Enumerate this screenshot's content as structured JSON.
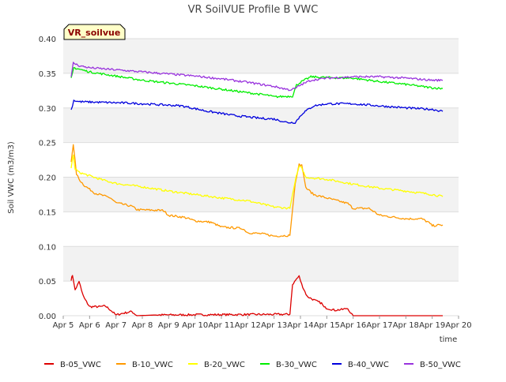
{
  "chart_data": {
    "type": "line",
    "title": "VR SoilVUE Profile B VWC",
    "xlabel": "time",
    "ylabel": "Soil VWC (m3/m3)",
    "ylim": [
      0,
      0.4
    ],
    "xlim": [
      5,
      20
    ],
    "y_ticks": [
      "0.00",
      "0.05",
      "0.10",
      "0.15",
      "0.20",
      "0.25",
      "0.30",
      "0.35",
      "0.40"
    ],
    "x_ticks": [
      {
        "value": 5,
        "label": "Apr 5"
      },
      {
        "value": 6,
        "label": "Apr 6"
      },
      {
        "value": 7,
        "label": "Apr 7"
      },
      {
        "value": 8,
        "label": "Apr 8"
      },
      {
        "value": 9,
        "label": "Apr 9"
      },
      {
        "value": 10,
        "label": "Apr 10"
      },
      {
        "value": 11,
        "label": "Apr 11"
      },
      {
        "value": 12,
        "label": "Apr 12"
      },
      {
        "value": 13,
        "label": "Apr 13"
      },
      {
        "value": 14,
        "label": "Apr 14"
      },
      {
        "value": 15,
        "label": "Apr 15"
      },
      {
        "value": 16,
        "label": "Apr 16"
      },
      {
        "value": 17,
        "label": "Apr 17"
      },
      {
        "value": 18,
        "label": "Apr 18"
      },
      {
        "value": 19,
        "label": "Apr 19"
      },
      {
        "value": 20,
        "label": "Apr 20"
      }
    ],
    "x_unit": "day of April",
    "grid": "horizontal bands",
    "legend_position": "bottom",
    "site_badge": "VR_soilvue",
    "series": [
      {
        "name": "B-05_VWC",
        "color": "#dd0000",
        "points": [
          [
            5.3,
            0.052
          ],
          [
            5.35,
            0.058
          ],
          [
            5.45,
            0.038
          ],
          [
            5.55,
            0.045
          ],
          [
            5.6,
            0.05
          ],
          [
            5.7,
            0.035
          ],
          [
            5.8,
            0.025
          ],
          [
            6.0,
            0.013
          ],
          [
            6.4,
            0.013
          ],
          [
            6.6,
            0.014
          ],
          [
            6.8,
            0.008
          ],
          [
            7.0,
            0.001
          ],
          [
            7.2,
            0.003
          ],
          [
            7.6,
            0.006
          ],
          [
            7.8,
            0.0
          ],
          [
            8.5,
            0.001
          ],
          [
            13.6,
            0.002
          ],
          [
            13.7,
            0.045
          ],
          [
            13.85,
            0.053
          ],
          [
            13.95,
            0.057
          ],
          [
            14.05,
            0.045
          ],
          [
            14.25,
            0.028
          ],
          [
            14.55,
            0.022
          ],
          [
            14.8,
            0.018
          ],
          [
            14.9,
            0.012
          ],
          [
            15.3,
            0.008
          ],
          [
            15.6,
            0.009
          ],
          [
            15.8,
            0.011
          ],
          [
            15.9,
            0.003
          ],
          [
            16.0,
            0.0
          ],
          [
            19.4,
            0.0
          ]
        ]
      },
      {
        "name": "B-10_VWC",
        "color": "#ff9900",
        "points": [
          [
            5.3,
            0.222
          ],
          [
            5.38,
            0.247
          ],
          [
            5.45,
            0.225
          ],
          [
            5.5,
            0.205
          ],
          [
            5.6,
            0.197
          ],
          [
            5.8,
            0.188
          ],
          [
            6.2,
            0.177
          ],
          [
            6.8,
            0.17
          ],
          [
            7.0,
            0.163
          ],
          [
            7.6,
            0.158
          ],
          [
            7.8,
            0.153
          ],
          [
            8.8,
            0.152
          ],
          [
            9.0,
            0.145
          ],
          [
            9.6,
            0.142
          ],
          [
            10.0,
            0.137
          ],
          [
            10.6,
            0.135
          ],
          [
            11.0,
            0.128
          ],
          [
            11.8,
            0.126
          ],
          [
            12.0,
            0.12
          ],
          [
            12.6,
            0.118
          ],
          [
            13.0,
            0.115
          ],
          [
            13.6,
            0.116
          ],
          [
            13.8,
            0.19
          ],
          [
            13.95,
            0.218
          ],
          [
            14.05,
            0.218
          ],
          [
            14.2,
            0.185
          ],
          [
            14.5,
            0.175
          ],
          [
            15.0,
            0.17
          ],
          [
            15.8,
            0.162
          ],
          [
            16.0,
            0.155
          ],
          [
            16.6,
            0.155
          ],
          [
            17.0,
            0.145
          ],
          [
            18.0,
            0.14
          ],
          [
            18.6,
            0.14
          ],
          [
            18.85,
            0.135
          ],
          [
            19.0,
            0.13
          ],
          [
            19.4,
            0.131
          ]
        ]
      },
      {
        "name": "B-20_VWC",
        "color": "#ffff00",
        "points": [
          [
            5.3,
            0.213
          ],
          [
            5.38,
            0.232
          ],
          [
            5.45,
            0.212
          ],
          [
            5.6,
            0.207
          ],
          [
            6.0,
            0.202
          ],
          [
            6.4,
            0.197
          ],
          [
            7.0,
            0.191
          ],
          [
            7.6,
            0.188
          ],
          [
            8.0,
            0.186
          ],
          [
            9.0,
            0.18
          ],
          [
            10.0,
            0.175
          ],
          [
            11.0,
            0.17
          ],
          [
            12.0,
            0.166
          ],
          [
            13.0,
            0.157
          ],
          [
            13.6,
            0.155
          ],
          [
            13.8,
            0.195
          ],
          [
            13.95,
            0.215
          ],
          [
            14.05,
            0.213
          ],
          [
            14.2,
            0.2
          ],
          [
            15.0,
            0.197
          ],
          [
            16.0,
            0.19
          ],
          [
            17.0,
            0.184
          ],
          [
            18.0,
            0.18
          ],
          [
            19.0,
            0.175
          ],
          [
            19.4,
            0.172
          ]
        ]
      },
      {
        "name": "B-30_VWC",
        "color": "#00ee00",
        "points": [
          [
            5.3,
            0.342
          ],
          [
            5.4,
            0.358
          ],
          [
            5.6,
            0.356
          ],
          [
            6.0,
            0.352
          ],
          [
            7.0,
            0.346
          ],
          [
            8.0,
            0.34
          ],
          [
            9.0,
            0.336
          ],
          [
            10.0,
            0.332
          ],
          [
            11.0,
            0.327
          ],
          [
            12.0,
            0.322
          ],
          [
            12.8,
            0.318
          ],
          [
            13.0,
            0.316
          ],
          [
            13.7,
            0.317
          ],
          [
            13.85,
            0.333
          ],
          [
            14.0,
            0.337
          ],
          [
            14.4,
            0.345
          ],
          [
            15.0,
            0.344
          ],
          [
            16.0,
            0.343
          ],
          [
            17.0,
            0.338
          ],
          [
            18.0,
            0.334
          ],
          [
            19.0,
            0.329
          ],
          [
            19.4,
            0.328
          ]
        ]
      },
      {
        "name": "B-40_VWC",
        "color": "#0000dd",
        "points": [
          [
            5.3,
            0.297
          ],
          [
            5.4,
            0.311
          ],
          [
            5.6,
            0.309
          ],
          [
            6.5,
            0.308
          ],
          [
            7.5,
            0.307
          ],
          [
            8.5,
            0.305
          ],
          [
            9.5,
            0.303
          ],
          [
            10.5,
            0.295
          ],
          [
            11.5,
            0.289
          ],
          [
            12.5,
            0.285
          ],
          [
            13.0,
            0.284
          ],
          [
            13.5,
            0.279
          ],
          [
            13.8,
            0.279
          ],
          [
            14.1,
            0.293
          ],
          [
            14.5,
            0.303
          ],
          [
            15.0,
            0.306
          ],
          [
            16.0,
            0.306
          ],
          [
            17.0,
            0.303
          ],
          [
            18.0,
            0.3
          ],
          [
            19.0,
            0.298
          ],
          [
            19.4,
            0.295
          ]
        ]
      },
      {
        "name": "B-50_VWC",
        "color": "#9933dd",
        "points": [
          [
            5.3,
            0.345
          ],
          [
            5.38,
            0.365
          ],
          [
            5.6,
            0.361
          ],
          [
            6.0,
            0.358
          ],
          [
            7.0,
            0.355
          ],
          [
            8.0,
            0.352
          ],
          [
            9.0,
            0.349
          ],
          [
            10.0,
            0.346
          ],
          [
            11.0,
            0.342
          ],
          [
            12.0,
            0.337
          ],
          [
            13.0,
            0.331
          ],
          [
            13.6,
            0.326
          ],
          [
            13.8,
            0.328
          ],
          [
            14.0,
            0.333
          ],
          [
            14.4,
            0.34
          ],
          [
            15.0,
            0.343
          ],
          [
            16.0,
            0.345
          ],
          [
            17.0,
            0.345
          ],
          [
            18.0,
            0.343
          ],
          [
            19.0,
            0.34
          ],
          [
            19.4,
            0.34
          ]
        ]
      }
    ]
  }
}
